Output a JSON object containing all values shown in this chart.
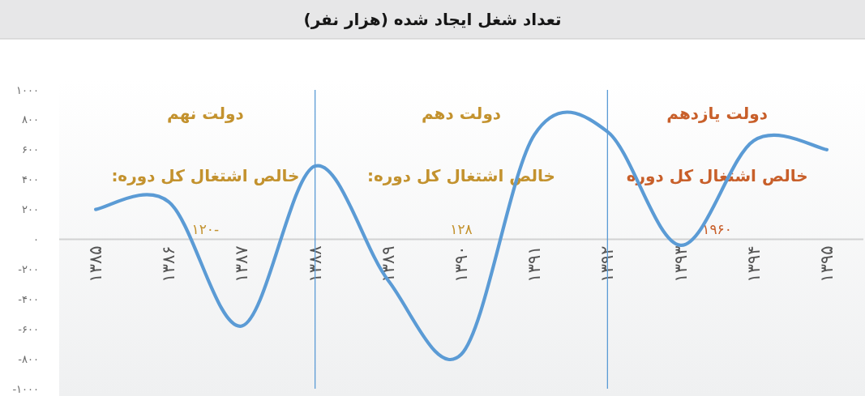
{
  "chart_data": {
    "type": "line",
    "title": "تعداد شغل ایجاد شده (هزار نفر)",
    "categories": [
      "۱۳۸۵",
      "۱۳۸۶",
      "۱۳۸۷",
      "۱۳۸۸",
      "۱۳۸۹",
      "۱۳۹۰",
      "۱۳۹۱",
      "۱۳۹۲",
      "۱۳۹۳",
      "۱۳۹۴",
      "۱۳۹۵"
    ],
    "series": [
      {
        "color": "#5b9bd5",
        "values": [
          200,
          250,
          -580,
          490,
          -275,
          -770,
          700,
          720,
          -40,
          660,
          600
        ]
      }
    ],
    "ylim": [
      -1000,
      1000
    ],
    "yticks": [
      {
        "value": 1000,
        "label": "۱۰۰۰"
      },
      {
        "value": 800,
        "label": "۸۰۰"
      },
      {
        "value": 600,
        "label": "۶۰۰"
      },
      {
        "value": 400,
        "label": "۴۰۰"
      },
      {
        "value": 200,
        "label": "۲۰۰"
      },
      {
        "value": 0,
        "label": "۰"
      },
      {
        "value": -200,
        "label": "-۲۰۰"
      },
      {
        "value": -400,
        "label": "-۴۰۰"
      },
      {
        "value": -600,
        "label": "-۶۰۰"
      },
      {
        "value": -800,
        "label": "-۸۰۰"
      },
      {
        "value": -1000,
        "label": "-۱۰۰۰"
      }
    ],
    "ref_lines": [
      {
        "axis": "x",
        "value": "۱۳۸۸",
        "color": "#5b9bd5"
      },
      {
        "axis": "x",
        "value": "۱۳۹۲",
        "color": "#5b9bd5"
      }
    ],
    "annotations": [
      "دولت نهم",
      "خالص اشتغال کل دوره:",
      "-۱۲۰",
      "دولت دهم",
      "خالص اشتغال کل دوره:",
      "۱۲۸",
      "دولت یازدهم",
      "خالص اشتغال کل دوره",
      "۱۹۶۰"
    ]
  }
}
